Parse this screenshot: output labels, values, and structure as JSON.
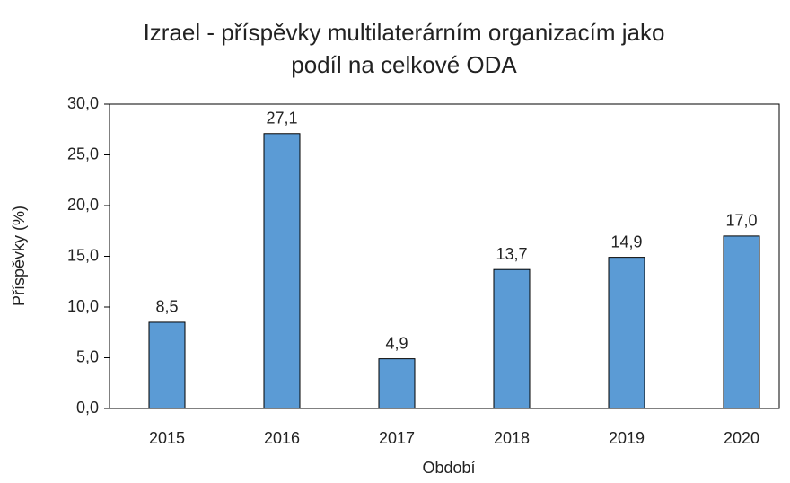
{
  "chart_data": {
    "type": "bar",
    "title": [
      "Izrael - příspěvky multilaterárním organizacím jako",
      "podíl na celkové  ODA"
    ],
    "x_label": "Období",
    "y_label": "Příspěvky (%)",
    "categories": [
      "2015",
      "2016",
      "2017",
      "2018",
      "2019",
      "2020"
    ],
    "values": [
      8.5,
      27.1,
      4.9,
      13.7,
      14.9,
      17.0
    ],
    "value_labels": [
      "8,5",
      "27,1",
      "4,9",
      "13,7",
      "14,9",
      "17,0"
    ],
    "color": "#5b9bd5",
    "ylim": [
      0,
      30
    ],
    "yticks": [
      {
        "value": 0,
        "label": "0,0"
      },
      {
        "value": 5,
        "label": "5,0"
      },
      {
        "value": 10,
        "label": "10,0"
      },
      {
        "value": 15,
        "label": "15,0"
      },
      {
        "value": 20,
        "label": "20,0"
      },
      {
        "value": 25,
        "label": "25,0"
      },
      {
        "value": 30,
        "label": "30,0"
      }
    ],
    "grid": false
  }
}
